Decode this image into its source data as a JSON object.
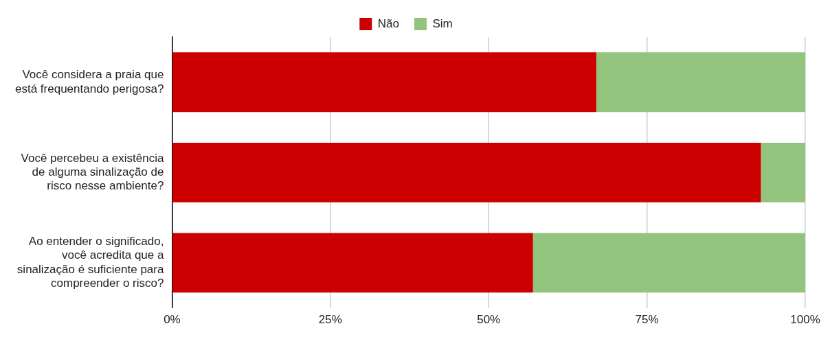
{
  "chart_data": {
    "type": "bar",
    "orientation": "horizontal",
    "stacked": true,
    "categories": [
      "Você considera a praia que está frequentando perigosa?",
      "Você percebeu a existência de alguma sinalização de risco nesse ambiente?",
      "Ao entender o significado, você acredita que a sinalização é suficiente para compreender o risco?"
    ],
    "series": [
      {
        "name": "Não",
        "color": "#cc0000",
        "values": [
          67,
          93,
          57
        ]
      },
      {
        "name": "Sim",
        "color": "#93c47d",
        "values": [
          33,
          7,
          43
        ]
      }
    ],
    "xlim": [
      0,
      100
    ],
    "xticks": [
      {
        "value": 0,
        "label": "0%"
      },
      {
        "value": 25,
        "label": "25%"
      },
      {
        "value": 50,
        "label": "50%"
      },
      {
        "value": 75,
        "label": "75%"
      },
      {
        "value": 100,
        "label": "100%"
      }
    ],
    "grid": "x",
    "legend": "top"
  }
}
